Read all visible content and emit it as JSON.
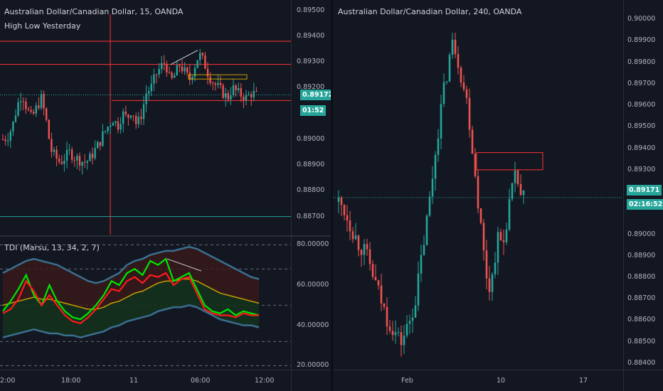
{
  "left_chart": {
    "title": "Australian Dollar/Canadian Dollar, 15, OANDA",
    "indicator": "High Low Yesterday",
    "price_axis": [
      "0.89500",
      "0.89400",
      "0.89300",
      "0.89200",
      "0.89000",
      "0.88900",
      "0.88800",
      "0.88700"
    ],
    "last_price": "0.89172",
    "countdown": "01:52",
    "time_axis": [
      "12:00",
      "18:00",
      "11",
      "06:00",
      "12:00"
    ]
  },
  "tdi": {
    "title": "TDI (Marsu, 13, 34, 2, 7)",
    "axis": [
      "80.00000",
      "60.00000",
      "40.00000",
      "20.00000"
    ]
  },
  "right_chart": {
    "title": "Australian Dollar/Canadian Dollar, 240, OANDA",
    "price_axis": [
      "0.90000",
      "0.89900",
      "0.89800",
      "0.89700",
      "0.89600",
      "0.89500",
      "0.89400",
      "0.89300",
      "0.89000",
      "0.88900",
      "0.88800",
      "0.88700",
      "0.88600",
      "0.88500",
      "0.88400"
    ],
    "last_price": "0.89171",
    "countdown": "02:16:52",
    "time_axis": [
      "Feb",
      "10",
      "17"
    ]
  },
  "colors": {
    "background": "#131722",
    "up": "#26a69a",
    "down": "#ef5350",
    "level": "#ff3333",
    "tdi_green": "#00e600",
    "tdi_red": "#ff1a1a",
    "tdi_blue": "#3a6f8f",
    "tdi_yellow": "#c8a000",
    "price_tag": "#26a69a"
  },
  "chart_data": [
    {
      "type": "candlestick",
      "title": "Australian Dollar/Canadian Dollar, 15, OANDA",
      "timeframe": "15",
      "y_range": [
        0.8863,
        0.8954
      ],
      "x_labels": [
        "12:00",
        "18:00",
        "11",
        "06:00",
        "12:00"
      ],
      "levels": [
        0.8938,
        0.8929,
        0.8915,
        0.887
      ],
      "last": 0.89172,
      "close_path": [
        0.89,
        0.8901,
        0.8905,
        0.8913,
        0.8918,
        0.8912,
        0.8908,
        0.8912,
        0.8916,
        0.8908,
        0.8896,
        0.8893,
        0.8891,
        0.8893,
        0.8895,
        0.8893,
        0.8892,
        0.8891,
        0.8892,
        0.8895,
        0.8898,
        0.8902,
        0.8905,
        0.8908,
        0.8905,
        0.891,
        0.8908,
        0.8912,
        0.8905,
        0.891,
        0.8918,
        0.892,
        0.8925,
        0.8928,
        0.893,
        0.8922,
        0.8925,
        0.8929,
        0.8926,
        0.8923,
        0.8928,
        0.8933,
        0.893,
        0.8925,
        0.8922,
        0.892,
        0.8918,
        0.8916,
        0.892,
        0.8918,
        0.8917,
        0.8916,
        0.8918,
        0.8917
      ]
    },
    {
      "type": "line",
      "title": "TDI (Marsu, 13, 34, 2, 7)",
      "y_range": [
        18,
        84
      ],
      "series": [
        {
          "values": [
            47,
            52,
            58,
            65,
            55,
            50,
            60,
            52,
            47,
            44,
            43,
            46,
            50,
            55,
            62,
            60,
            66,
            68,
            65,
            72,
            70,
            73,
            62,
            64,
            66,
            58,
            50,
            47,
            46,
            48,
            45,
            47,
            46,
            45
          ]
        },
        {
          "values": [
            46,
            48,
            53,
            62,
            57,
            50,
            55,
            50,
            45,
            42,
            41,
            44,
            48,
            53,
            58,
            57,
            62,
            64,
            61,
            65,
            64,
            66,
            60,
            63,
            64,
            56,
            48,
            46,
            45,
            45,
            44,
            46,
            45,
            45
          ]
        },
        {
          "values": [
            50,
            51,
            52,
            53,
            54,
            53,
            53,
            52,
            51,
            50,
            49,
            48,
            48,
            49,
            51,
            52,
            54,
            56,
            57,
            59,
            61,
            62,
            62,
            63,
            63,
            62,
            60,
            58,
            56,
            55,
            54,
            53,
            52,
            51
          ]
        },
        {
          "values": [
            66,
            68,
            70,
            72,
            73,
            72,
            71,
            70,
            68,
            66,
            64,
            62,
            61,
            62,
            64,
            66,
            70,
            72,
            73,
            75,
            76,
            77,
            77,
            78,
            79,
            78,
            76,
            74,
            72,
            70,
            68,
            66,
            64,
            63
          ]
        },
        {
          "values": [
            34,
            35,
            36,
            37,
            38,
            37,
            36,
            36,
            35,
            35,
            34,
            35,
            36,
            37,
            39,
            40,
            42,
            43,
            44,
            45,
            47,
            48,
            49,
            49,
            50,
            49,
            47,
            45,
            43,
            42,
            41,
            40,
            40,
            39
          ]
        }
      ]
    },
    {
      "type": "candlestick",
      "title": "Australian Dollar/Canadian Dollar, 240, OANDA",
      "timeframe": "240",
      "y_range": [
        0.8837,
        0.9009
      ],
      "x_labels": [
        "Feb",
        "10",
        "17"
      ],
      "last": 0.89171,
      "zone": [
        0.893,
        0.8938
      ],
      "close_path": [
        0.8915,
        0.8913,
        0.891,
        0.8906,
        0.8902,
        0.8898,
        0.8895,
        0.8893,
        0.889,
        0.8885,
        0.888,
        0.8875,
        0.887,
        0.8865,
        0.886,
        0.8858,
        0.8855,
        0.8852,
        0.885,
        0.8854,
        0.8858,
        0.8863,
        0.887,
        0.888,
        0.8892,
        0.8903,
        0.8915,
        0.8928,
        0.8942,
        0.8955,
        0.8965,
        0.8975,
        0.8985,
        0.899,
        0.8983,
        0.8975,
        0.8967,
        0.896,
        0.8945,
        0.893,
        0.8915,
        0.89,
        0.8885,
        0.8875,
        0.888,
        0.8893,
        0.89,
        0.8893,
        0.8905,
        0.8915,
        0.8922,
        0.8928,
        0.8918,
        0.8917
      ]
    }
  ]
}
